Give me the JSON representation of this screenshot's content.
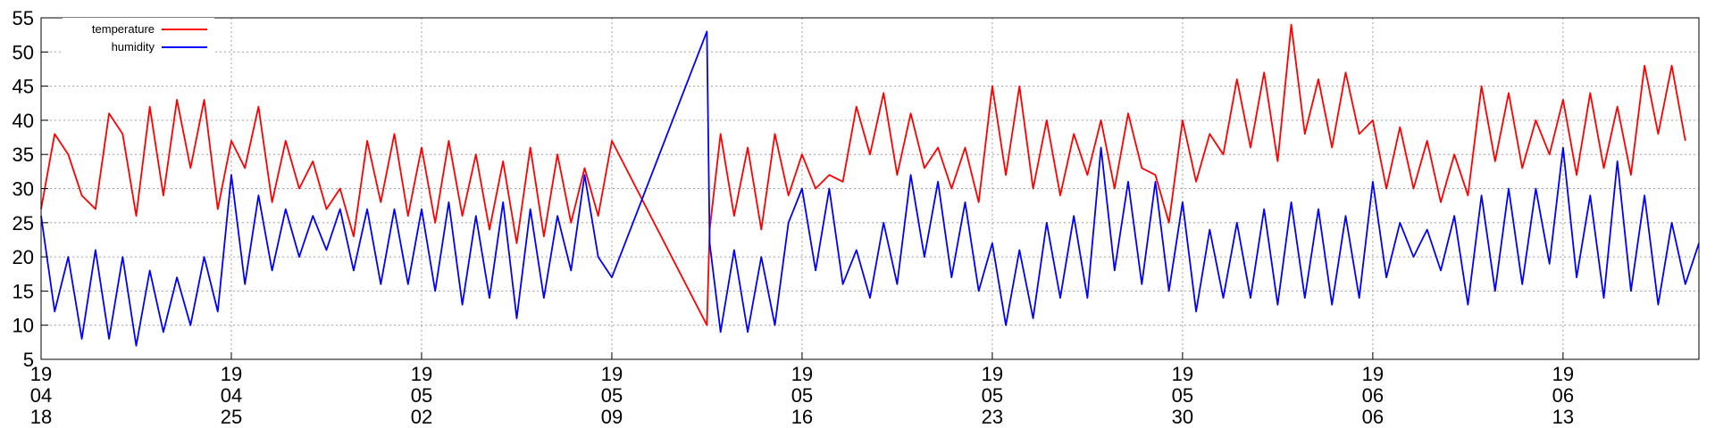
{
  "chart_data": {
    "type": "line",
    "title": "",
    "xlabel": "",
    "ylabel": "",
    "ylim": [
      5,
      55
    ],
    "yticks": [
      5,
      10,
      15,
      20,
      25,
      30,
      35,
      40,
      45,
      50,
      55
    ],
    "grid": true,
    "legend_position": "top-left",
    "x_range": [
      "2019-04-18",
      "2019-06-18"
    ],
    "x_ticks": [
      {
        "date": "2019-04-18",
        "lines": [
          "19",
          "04",
          "18"
        ]
      },
      {
        "date": "2019-04-25",
        "lines": [
          "19",
          "04",
          "25"
        ]
      },
      {
        "date": "2019-05-02",
        "lines": [
          "19",
          "05",
          "02"
        ]
      },
      {
        "date": "2019-05-09",
        "lines": [
          "19",
          "05",
          "09"
        ]
      },
      {
        "date": "2019-05-16",
        "lines": [
          "19",
          "05",
          "16"
        ]
      },
      {
        "date": "2019-05-23",
        "lines": [
          "19",
          "05",
          "23"
        ]
      },
      {
        "date": "2019-05-30",
        "lines": [
          "19",
          "05",
          "30"
        ]
      },
      {
        "date": "2019-06-06",
        "lines": [
          "19",
          "06",
          "06"
        ]
      },
      {
        "date": "2019-06-13",
        "lines": [
          "19",
          "06",
          "13"
        ]
      }
    ],
    "series": [
      {
        "name": "temperature",
        "color": "#ff0000",
        "points": [
          [
            "2019-04-18",
            27
          ],
          [
            "2019-04-18.5",
            38
          ],
          [
            "2019-04-19",
            35
          ],
          [
            "2019-04-19.5",
            29
          ],
          [
            "2019-04-20",
            27
          ],
          [
            "2019-04-20.5",
            41
          ],
          [
            "2019-04-21",
            38
          ],
          [
            "2019-04-21.5",
            26
          ],
          [
            "2019-04-22",
            42
          ],
          [
            "2019-04-22.5",
            29
          ],
          [
            "2019-04-23",
            43
          ],
          [
            "2019-04-23.5",
            33
          ],
          [
            "2019-04-24",
            43
          ],
          [
            "2019-04-24.5",
            27
          ],
          [
            "2019-04-25",
            37
          ],
          [
            "2019-04-25.5",
            33
          ],
          [
            "2019-04-26",
            42
          ],
          [
            "2019-04-26.5",
            28
          ],
          [
            "2019-04-27",
            37
          ],
          [
            "2019-04-27.5",
            30
          ],
          [
            "2019-04-28",
            34
          ],
          [
            "2019-04-28.5",
            27
          ],
          [
            "2019-04-29",
            30
          ],
          [
            "2019-04-29.5",
            23
          ],
          [
            "2019-04-30",
            37
          ],
          [
            "2019-04-30.5",
            28
          ],
          [
            "2019-05-01",
            38
          ],
          [
            "2019-05-01.5",
            26
          ],
          [
            "2019-05-02",
            36
          ],
          [
            "2019-05-02.5",
            25
          ],
          [
            "2019-05-03",
            37
          ],
          [
            "2019-05-03.5",
            26
          ],
          [
            "2019-05-04",
            35
          ],
          [
            "2019-05-04.5",
            24
          ],
          [
            "2019-05-05",
            34
          ],
          [
            "2019-05-05.5",
            22
          ],
          [
            "2019-05-06",
            36
          ],
          [
            "2019-05-06.5",
            23
          ],
          [
            "2019-05-07",
            35
          ],
          [
            "2019-05-07.5",
            25
          ],
          [
            "2019-05-08",
            33
          ],
          [
            "2019-05-08.5",
            26
          ],
          [
            "2019-05-09",
            37
          ],
          [
            "2019-05-12.5",
            10
          ],
          [
            "2019-05-12.6",
            24
          ],
          [
            "2019-05-13",
            38
          ],
          [
            "2019-05-13.5",
            26
          ],
          [
            "2019-05-14",
            36
          ],
          [
            "2019-05-14.5",
            24
          ],
          [
            "2019-05-15",
            38
          ],
          [
            "2019-05-15.5",
            29
          ],
          [
            "2019-05-16",
            35
          ],
          [
            "2019-05-16.5",
            30
          ],
          [
            "2019-05-17",
            32
          ],
          [
            "2019-05-17.5",
            31
          ],
          [
            "2019-05-18",
            42
          ],
          [
            "2019-05-18.5",
            35
          ],
          [
            "2019-05-19",
            44
          ],
          [
            "2019-05-19.5",
            32
          ],
          [
            "2019-05-20",
            41
          ],
          [
            "2019-05-20.5",
            33
          ],
          [
            "2019-05-21",
            36
          ],
          [
            "2019-05-21.5",
            30
          ],
          [
            "2019-05-22",
            36
          ],
          [
            "2019-05-22.5",
            28
          ],
          [
            "2019-05-23",
            45
          ],
          [
            "2019-05-23.5",
            32
          ],
          [
            "2019-05-24",
            45
          ],
          [
            "2019-05-24.5",
            30
          ],
          [
            "2019-05-25",
            40
          ],
          [
            "2019-05-25.5",
            29
          ],
          [
            "2019-05-26",
            38
          ],
          [
            "2019-05-26.5",
            32
          ],
          [
            "2019-05-27",
            40
          ],
          [
            "2019-05-27.5",
            30
          ],
          [
            "2019-05-28",
            41
          ],
          [
            "2019-05-28.5",
            33
          ],
          [
            "2019-05-29",
            32
          ],
          [
            "2019-05-29.5",
            25
          ],
          [
            "2019-05-30",
            40
          ],
          [
            "2019-05-30.5",
            31
          ],
          [
            "2019-05-31",
            38
          ],
          [
            "2019-05-31.5",
            35
          ],
          [
            "2019-06-01",
            46
          ],
          [
            "2019-06-01.5",
            36
          ],
          [
            "2019-06-02",
            47
          ],
          [
            "2019-06-02.5",
            34
          ],
          [
            "2019-06-03",
            54
          ],
          [
            "2019-06-03.5",
            38
          ],
          [
            "2019-06-04",
            46
          ],
          [
            "2019-06-04.5",
            36
          ],
          [
            "2019-06-05",
            47
          ],
          [
            "2019-06-05.5",
            38
          ],
          [
            "2019-06-06",
            40
          ],
          [
            "2019-06-06.5",
            30
          ],
          [
            "2019-06-07",
            39
          ],
          [
            "2019-06-07.5",
            30
          ],
          [
            "2019-06-08",
            37
          ],
          [
            "2019-06-08.5",
            28
          ],
          [
            "2019-06-09",
            35
          ],
          [
            "2019-06-09.5",
            29
          ],
          [
            "2019-06-10",
            45
          ],
          [
            "2019-06-10.5",
            34
          ],
          [
            "2019-06-11",
            44
          ],
          [
            "2019-06-11.5",
            33
          ],
          [
            "2019-06-12",
            40
          ],
          [
            "2019-06-12.5",
            35
          ],
          [
            "2019-06-13",
            43
          ],
          [
            "2019-06-13.5",
            32
          ],
          [
            "2019-06-14",
            44
          ],
          [
            "2019-06-14.5",
            33
          ],
          [
            "2019-06-15",
            42
          ],
          [
            "2019-06-15.5",
            32
          ],
          [
            "2019-06-16",
            48
          ],
          [
            "2019-06-16.5",
            38
          ],
          [
            "2019-06-17",
            48
          ],
          [
            "2019-06-17.5",
            37
          ]
        ]
      },
      {
        "name": "humidity",
        "color": "#0000ff",
        "points": [
          [
            "2019-04-18",
            26
          ],
          [
            "2019-04-18.5",
            12
          ],
          [
            "2019-04-19",
            20
          ],
          [
            "2019-04-19.5",
            8
          ],
          [
            "2019-04-20",
            21
          ],
          [
            "2019-04-20.5",
            8
          ],
          [
            "2019-04-21",
            20
          ],
          [
            "2019-04-21.5",
            7
          ],
          [
            "2019-04-22",
            18
          ],
          [
            "2019-04-22.5",
            9
          ],
          [
            "2019-04-23",
            17
          ],
          [
            "2019-04-23.5",
            10
          ],
          [
            "2019-04-24",
            20
          ],
          [
            "2019-04-24.5",
            12
          ],
          [
            "2019-04-25",
            32
          ],
          [
            "2019-04-25.5",
            16
          ],
          [
            "2019-04-26",
            29
          ],
          [
            "2019-04-26.5",
            18
          ],
          [
            "2019-04-27",
            27
          ],
          [
            "2019-04-27.5",
            20
          ],
          [
            "2019-04-28",
            26
          ],
          [
            "2019-04-28.5",
            21
          ],
          [
            "2019-04-29",
            27
          ],
          [
            "2019-04-29.5",
            18
          ],
          [
            "2019-04-30",
            27
          ],
          [
            "2019-04-30.5",
            16
          ],
          [
            "2019-05-01",
            27
          ],
          [
            "2019-05-01.5",
            16
          ],
          [
            "2019-05-02",
            27
          ],
          [
            "2019-05-02.5",
            15
          ],
          [
            "2019-05-03",
            28
          ],
          [
            "2019-05-03.5",
            13
          ],
          [
            "2019-05-04",
            26
          ],
          [
            "2019-05-04.5",
            14
          ],
          [
            "2019-05-05",
            28
          ],
          [
            "2019-05-05.5",
            11
          ],
          [
            "2019-05-06",
            27
          ],
          [
            "2019-05-06.5",
            14
          ],
          [
            "2019-05-07",
            26
          ],
          [
            "2019-05-07.5",
            18
          ],
          [
            "2019-05-08",
            32
          ],
          [
            "2019-05-08.5",
            20
          ],
          [
            "2019-05-09",
            17
          ],
          [
            "2019-05-12.5",
            53
          ],
          [
            "2019-05-12.6",
            22
          ],
          [
            "2019-05-13",
            9
          ],
          [
            "2019-05-13.5",
            21
          ],
          [
            "2019-05-14",
            9
          ],
          [
            "2019-05-14.5",
            20
          ],
          [
            "2019-05-15",
            10
          ],
          [
            "2019-05-15.5",
            25
          ],
          [
            "2019-05-16",
            30
          ],
          [
            "2019-05-16.5",
            18
          ],
          [
            "2019-05-17",
            30
          ],
          [
            "2019-05-17.5",
            16
          ],
          [
            "2019-05-18",
            21
          ],
          [
            "2019-05-18.5",
            14
          ],
          [
            "2019-05-19",
            25
          ],
          [
            "2019-05-19.5",
            16
          ],
          [
            "2019-05-20",
            32
          ],
          [
            "2019-05-20.5",
            20
          ],
          [
            "2019-05-21",
            31
          ],
          [
            "2019-05-21.5",
            17
          ],
          [
            "2019-05-22",
            28
          ],
          [
            "2019-05-22.5",
            15
          ],
          [
            "2019-05-23",
            22
          ],
          [
            "2019-05-23.5",
            10
          ],
          [
            "2019-05-24",
            21
          ],
          [
            "2019-05-24.5",
            11
          ],
          [
            "2019-05-25",
            25
          ],
          [
            "2019-05-25.5",
            14
          ],
          [
            "2019-05-26",
            26
          ],
          [
            "2019-05-26.5",
            14
          ],
          [
            "2019-05-27",
            36
          ],
          [
            "2019-05-27.5",
            18
          ],
          [
            "2019-05-28",
            31
          ],
          [
            "2019-05-28.5",
            16
          ],
          [
            "2019-05-29",
            31
          ],
          [
            "2019-05-29.5",
            15
          ],
          [
            "2019-05-30",
            28
          ],
          [
            "2019-05-30.5",
            12
          ],
          [
            "2019-05-31",
            24
          ],
          [
            "2019-05-31.5",
            14
          ],
          [
            "2019-06-01",
            25
          ],
          [
            "2019-06-01.5",
            14
          ],
          [
            "2019-06-02",
            27
          ],
          [
            "2019-06-02.5",
            13
          ],
          [
            "2019-06-03",
            28
          ],
          [
            "2019-06-03.5",
            14
          ],
          [
            "2019-06-04",
            27
          ],
          [
            "2019-06-04.5",
            13
          ],
          [
            "2019-06-05",
            26
          ],
          [
            "2019-06-05.5",
            14
          ],
          [
            "2019-06-06",
            31
          ],
          [
            "2019-06-06.5",
            17
          ],
          [
            "2019-06-07",
            25
          ],
          [
            "2019-06-07.5",
            20
          ],
          [
            "2019-06-08",
            24
          ],
          [
            "2019-06-08.5",
            18
          ],
          [
            "2019-06-09",
            26
          ],
          [
            "2019-06-09.5",
            13
          ],
          [
            "2019-06-10",
            29
          ],
          [
            "2019-06-10.5",
            15
          ],
          [
            "2019-06-11",
            30
          ],
          [
            "2019-06-11.5",
            16
          ],
          [
            "2019-06-12",
            30
          ],
          [
            "2019-06-12.5",
            19
          ],
          [
            "2019-06-13",
            36
          ],
          [
            "2019-06-13.5",
            17
          ],
          [
            "2019-06-14",
            29
          ],
          [
            "2019-06-14.5",
            14
          ],
          [
            "2019-06-15",
            34
          ],
          [
            "2019-06-15.5",
            15
          ],
          [
            "2019-06-16",
            29
          ],
          [
            "2019-06-16.5",
            13
          ],
          [
            "2019-06-17",
            25
          ],
          [
            "2019-06-17.5",
            16
          ],
          [
            "2019-06-18",
            22
          ]
        ]
      }
    ]
  }
}
